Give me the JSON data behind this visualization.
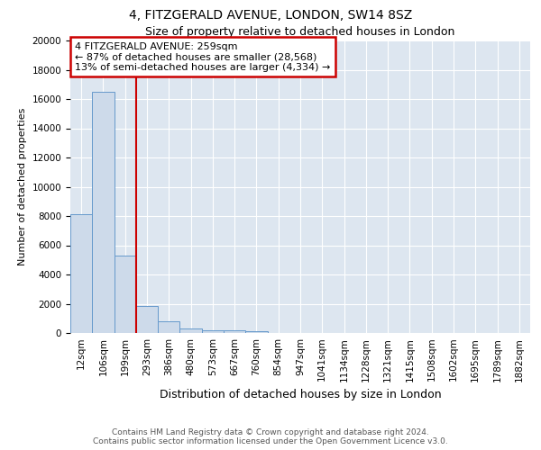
{
  "title1": "4, FITZGERALD AVENUE, LONDON, SW14 8SZ",
  "title2": "Size of property relative to detached houses in London",
  "xlabel": "Distribution of detached houses by size in London",
  "ylabel": "Number of detached properties",
  "bar_labels": [
    "12sqm",
    "106sqm",
    "199sqm",
    "293sqm",
    "386sqm",
    "480sqm",
    "573sqm",
    "667sqm",
    "760sqm",
    "854sqm",
    "947sqm",
    "1041sqm",
    "1134sqm",
    "1228sqm",
    "1321sqm",
    "1415sqm",
    "1508sqm",
    "1602sqm",
    "1695sqm",
    "1789sqm",
    "1882sqm"
  ],
  "bar_values": [
    8100,
    16500,
    5300,
    1850,
    800,
    280,
    200,
    170,
    100,
    0,
    0,
    0,
    0,
    0,
    0,
    0,
    0,
    0,
    0,
    0,
    0
  ],
  "bar_color": "#cddaea",
  "bar_edge_color": "#6699cc",
  "bar_edge_width": 0.7,
  "red_line_x": 2.5,
  "annotation_text": "4 FITZGERALD AVENUE: 259sqm\n← 87% of detached houses are smaller (28,568)\n13% of semi-detached houses are larger (4,334) →",
  "annotation_box_color": "#ffffff",
  "annotation_box_edge": "#cc0000",
  "ylim": [
    0,
    20000
  ],
  "yticks": [
    0,
    2000,
    4000,
    6000,
    8000,
    10000,
    12000,
    14000,
    16000,
    18000,
    20000
  ],
  "background_color": "#dde6f0",
  "footer_line1": "Contains HM Land Registry data © Crown copyright and database right 2024.",
  "footer_line2": "Contains public sector information licensed under the Open Government Licence v3.0.",
  "title1_fontsize": 10,
  "title2_fontsize": 9,
  "xlabel_fontsize": 9,
  "ylabel_fontsize": 8,
  "tick_fontsize": 7.5,
  "annotation_fontsize": 8,
  "footer_fontsize": 6.5
}
